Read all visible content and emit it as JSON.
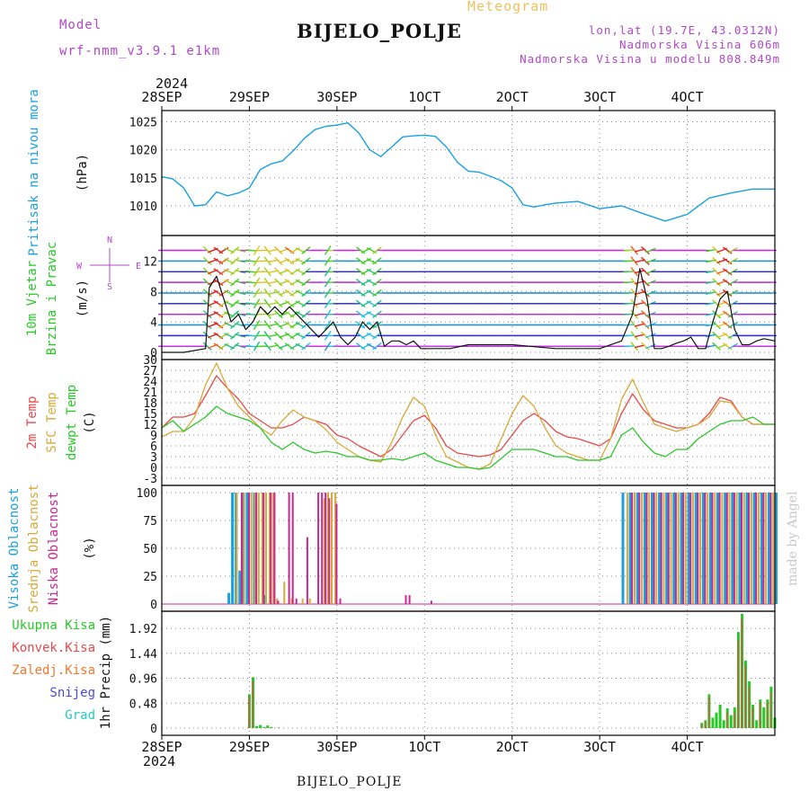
{
  "header": {
    "model_label": "Model",
    "model_name": "wrf-nmm_v3.9.1 e1km",
    "station_title": "BIJELO_POLJE",
    "meteogram_label": "Meteogram",
    "lonlat": "lon,lat (19.7E, 43.0312N)",
    "altitude": "Nadmorska Visina 606m",
    "model_altitude": "Nadmorska Visina u modelu 808.849m"
  },
  "footer": {
    "station": "BIJELO_POLJE",
    "credit": "made by Angel"
  },
  "time_axis": {
    "year": "2024",
    "labels": [
      "28SEP",
      "29SEP",
      "30SEP",
      "1OCT",
      "2OCT",
      "3OCT",
      "4OCT"
    ]
  },
  "colors": {
    "pressure": "#1aa0e0",
    "temp2m": "#e84848",
    "sfctemp": "#d8a838",
    "dewpt": "#28c828",
    "cloud_high": "#1aa0e0",
    "cloud_mid": "#d8a838",
    "cloud_low": "#c82890",
    "precip_total": "#28c828",
    "precip_conv": "#e84848",
    "precip_frozen": "#f07830",
    "snow": "#4848e8",
    "hail": "#28c8c8",
    "label_purple": "#b048c8"
  },
  "chart_data": [
    {
      "type": "line",
      "panel": "pressure",
      "ylabel_parts": [
        "Pritisak na nivou mora",
        "(hPa)"
      ],
      "yticks": [
        1010,
        1015,
        1020,
        1025
      ],
      "ylim": [
        1006,
        1027
      ],
      "x_unit": "hours since 28SEP 00Z",
      "series": [
        {
          "name": "Pritisak na nivou mora",
          "x": [
            0,
            3,
            6,
            9,
            12,
            15,
            18,
            21,
            24,
            27,
            30,
            33,
            36,
            39,
            42,
            45,
            48,
            51,
            54,
            57,
            60,
            63,
            66,
            69,
            72,
            75,
            78,
            81,
            84,
            87,
            90,
            93,
            96,
            99,
            102,
            105,
            108,
            114,
            120,
            126,
            132,
            138,
            144,
            150,
            156,
            162,
            168
          ],
          "y": [
            1015.2,
            1014.8,
            1013.2,
            1010,
            1010.2,
            1012.5,
            1011.8,
            1012.3,
            1013.2,
            1016.5,
            1017.5,
            1018,
            1019.8,
            1022,
            1023.6,
            1024.2,
            1024.4,
            1024.8,
            1023,
            1020,
            1018.8,
            1020.5,
            1022.3,
            1022.5,
            1022.6,
            1022.4,
            1020.5,
            1017.8,
            1016.2,
            1016,
            1015.3,
            1014.5,
            1013.2,
            1010.2,
            1009.8,
            1010.2,
            1010.5,
            1010.8,
            1009.5,
            1010,
            1008.6,
            1007.3,
            1008.5,
            1011.4,
            1012.3,
            1013,
            1013
          ]
        }
      ]
    },
    {
      "type": "line",
      "panel": "wind",
      "ylabel_parts": [
        "10m Vjetar",
        "Brzina i Pravac",
        "(m/s)"
      ],
      "compass": [
        "N",
        "S",
        "W",
        "E"
      ],
      "yticks": [
        0,
        4,
        8,
        12
      ],
      "ylim": [
        0,
        15
      ],
      "series": [
        {
          "name": "10m Vjetar",
          "x": [
            0,
            6,
            12,
            13,
            15,
            17,
            19,
            21,
            23,
            25,
            27,
            29,
            31,
            33,
            35,
            37,
            39,
            41,
            43,
            45,
            47,
            49,
            51,
            53,
            55,
            57,
            59,
            61,
            63,
            65,
            67,
            69,
            71,
            73,
            75,
            77,
            79,
            84,
            96,
            108,
            120,
            126,
            129,
            131,
            133,
            135,
            137,
            139,
            141,
            143,
            145,
            147,
            149,
            151,
            153,
            155,
            157,
            159,
            161,
            163,
            165,
            168
          ],
          "y": [
            0,
            0,
            0.5,
            8.5,
            10,
            7,
            4,
            5,
            3,
            4,
            6,
            5,
            6,
            5,
            6,
            5,
            4,
            3,
            2,
            3,
            4,
            2,
            1,
            2,
            4,
            3,
            4,
            0.8,
            1.5,
            1.5,
            1,
            1.5,
            0.5,
            0.5,
            0.5,
            0.5,
            0.5,
            1,
            1,
            0.5,
            0.5,
            1.5,
            5,
            11,
            7,
            0.5,
            0.5,
            0.8,
            1.2,
            1.5,
            2,
            0.5,
            0.5,
            4,
            7,
            8,
            3,
            1,
            1,
            1.5,
            1.8,
            1.5
          ]
        }
      ]
    },
    {
      "type": "line",
      "panel": "temperature",
      "ylabel_parts": [
        "2m Temp",
        "SFC Temp",
        "dewpt Temp",
        "(C)"
      ],
      "yticks": [
        -3,
        0,
        3,
        6,
        9,
        12,
        15,
        18,
        21,
        24,
        27,
        30
      ],
      "ylim": [
        -3,
        30
      ],
      "series": [
        {
          "name": "2m Temp",
          "x": [
            0,
            3,
            6,
            9,
            12,
            15,
            18,
            21,
            24,
            27,
            30,
            33,
            36,
            39,
            42,
            45,
            48,
            51,
            54,
            57,
            60,
            63,
            66,
            69,
            72,
            75,
            78,
            81,
            84,
            87,
            90,
            93,
            96,
            99,
            102,
            105,
            108,
            111,
            114,
            117,
            120,
            123,
            126,
            129,
            132,
            135,
            138,
            141,
            144,
            147,
            150,
            153,
            156,
            159,
            162,
            165,
            168
          ],
          "y": [
            11,
            14,
            14,
            15,
            20,
            25.5,
            22,
            19,
            15,
            13,
            11,
            11,
            12,
            14,
            13,
            12,
            9,
            8,
            6,
            4.5,
            3,
            5,
            9,
            13,
            14.5,
            11,
            6,
            4,
            3.5,
            3,
            3.5,
            5,
            9,
            13,
            15,
            13,
            10,
            8.5,
            8,
            7,
            6,
            8,
            15,
            20.5,
            16,
            13,
            12,
            11,
            11,
            12,
            15,
            19.5,
            18.5,
            14,
            12,
            12,
            12
          ]
        },
        {
          "name": "SFC Temp",
          "x": [
            0,
            3,
            6,
            9,
            12,
            15,
            18,
            21,
            24,
            27,
            30,
            33,
            36,
            39,
            42,
            45,
            48,
            51,
            54,
            57,
            60,
            63,
            66,
            69,
            72,
            75,
            78,
            81,
            84,
            87,
            90,
            93,
            96,
            99,
            102,
            105,
            108,
            111,
            114,
            117,
            120,
            123,
            126,
            129,
            132,
            135,
            138,
            141,
            144,
            147,
            150,
            153,
            156,
            159,
            162,
            165,
            168
          ],
          "y": [
            8.5,
            10,
            10,
            14,
            23,
            29,
            22,
            17,
            14,
            11,
            9,
            13,
            16,
            14,
            13,
            10.5,
            7,
            5,
            3,
            2,
            1.5,
            7,
            14,
            19.5,
            17,
            9,
            3,
            1.5,
            0,
            -0.5,
            1,
            8,
            15,
            20,
            17,
            11,
            6,
            4,
            3,
            2,
            2,
            8,
            19,
            24.5,
            18,
            12,
            11,
            10,
            11,
            12,
            14,
            18.5,
            18,
            14,
            12,
            12,
            12
          ]
        },
        {
          "name": "dewpt Temp",
          "x": [
            0,
            3,
            6,
            9,
            12,
            15,
            18,
            21,
            24,
            27,
            30,
            33,
            36,
            39,
            42,
            45,
            48,
            51,
            54,
            57,
            60,
            63,
            66,
            69,
            72,
            75,
            78,
            81,
            84,
            87,
            90,
            93,
            96,
            99,
            102,
            105,
            108,
            111,
            114,
            117,
            120,
            123,
            126,
            129,
            132,
            135,
            138,
            141,
            144,
            147,
            150,
            153,
            156,
            159,
            162,
            165,
            168
          ],
          "y": [
            11,
            13,
            10,
            12,
            14,
            17,
            15,
            14,
            13,
            11,
            7,
            5,
            7,
            5,
            4,
            4.5,
            4,
            3,
            3,
            2,
            2,
            2.5,
            2,
            3,
            4,
            2,
            1,
            0,
            0,
            -0.5,
            0,
            2.5,
            5,
            5,
            5,
            4,
            3,
            3,
            2,
            2,
            2,
            3,
            9,
            11,
            7,
            4,
            3,
            5,
            5,
            8,
            10,
            12,
            13,
            13,
            14,
            12,
            12
          ]
        }
      ]
    },
    {
      "type": "bar",
      "panel": "clouds",
      "ylabel_parts": [
        "Visoka Oblacnost",
        "Srednja Oblacnost",
        "Niska Oblacnost",
        "(%)"
      ],
      "yticks": [
        0,
        25,
        50,
        75,
        100
      ],
      "ylim": [
        0,
        100
      ],
      "series": [
        {
          "name": "Visoka Oblacnost",
          "x": [
            18,
            19,
            20,
            21,
            22,
            23,
            25,
            28,
            126,
            128,
            130,
            132,
            134,
            136,
            138,
            140,
            142,
            144,
            146,
            148,
            150,
            152,
            154,
            156,
            158,
            160,
            162,
            164,
            166,
            168
          ],
          "y": [
            10,
            100,
            100,
            30,
            100,
            100,
            100,
            8,
            100,
            100,
            100,
            100,
            100,
            100,
            100,
            100,
            100,
            100,
            100,
            100,
            100,
            100,
            100,
            100,
            100,
            100,
            100,
            100,
            100,
            100
          ]
        },
        {
          "name": "Srednja Oblacnost",
          "x": [
            20,
            22,
            24,
            25,
            26,
            27,
            28,
            29,
            30,
            31,
            33,
            35,
            38,
            40,
            44,
            45,
            46,
            47,
            127,
            129,
            131,
            133,
            135,
            137,
            139,
            141,
            143,
            145,
            147,
            149,
            151,
            153,
            155,
            157,
            159,
            161,
            163,
            165,
            167
          ],
          "y": [
            100,
            100,
            100,
            100,
            100,
            100,
            100,
            100,
            100,
            5,
            20,
            5,
            5,
            5,
            95,
            100,
            100,
            100,
            100,
            100,
            100,
            100,
            100,
            100,
            100,
            100,
            100,
            100,
            100,
            100,
            100,
            100,
            100,
            100,
            100,
            100,
            100,
            100,
            100
          ]
        },
        {
          "name": "Niska Oblacnost",
          "x": [
            21,
            23,
            25,
            27,
            29,
            30,
            31,
            34,
            35,
            36,
            39,
            42,
            43,
            44,
            45,
            47,
            48,
            66,
            67,
            73,
            128,
            130,
            132,
            134,
            136,
            138,
            140,
            142,
            144,
            146,
            148,
            150,
            152,
            154,
            156,
            158,
            160,
            162,
            164,
            166
          ],
          "y": [
            100,
            100,
            100,
            100,
            100,
            100,
            3,
            100,
            100,
            5,
            60,
            100,
            100,
            100,
            95,
            90,
            5,
            8,
            8,
            3,
            100,
            100,
            100,
            100,
            100,
            100,
            100,
            100,
            100,
            100,
            100,
            100,
            100,
            100,
            100,
            100,
            100,
            100,
            100,
            100
          ]
        }
      ]
    },
    {
      "type": "bar",
      "panel": "precip",
      "ylabel_parts": [
        "1hr Precip (mm)"
      ],
      "legend": [
        "Ukupna Kisa",
        "Konvek.Kisa",
        "Zaledj.Kisa",
        "Snijeg",
        "Grad"
      ],
      "yticks": [
        0,
        0.48,
        0.96,
        1.44,
        1.92
      ],
      "ylim": [
        0,
        2.25
      ],
      "series": [
        {
          "name": "Ukupna Kisa",
          "x": [
            24,
            25,
            26,
            27,
            28,
            29,
            30,
            32,
            148,
            149,
            150,
            151,
            152,
            153,
            154,
            155,
            156,
            157,
            158,
            159,
            160,
            161,
            162,
            163,
            164,
            165,
            166,
            167,
            168
          ],
          "y": [
            0.65,
            0.98,
            0.04,
            0.06,
            0.02,
            0.05,
            0.02,
            0.01,
            0.1,
            0.15,
            0.65,
            0.2,
            0.3,
            0.45,
            0.15,
            0.38,
            0.25,
            0.4,
            1.85,
            2.2,
            1.3,
            0.9,
            0.45,
            0.15,
            0.55,
            0.4,
            0.55,
            0.8,
            0.2
          ]
        },
        {
          "name": "Konvek.Kisa",
          "x": [
            24,
            25,
            148,
            149,
            150,
            155,
            157,
            158,
            159,
            160,
            161,
            162,
            164,
            166,
            167
          ],
          "y": [
            0.6,
            0.9,
            0.08,
            0.12,
            0.6,
            0.3,
            0.3,
            1.7,
            2.1,
            1.2,
            0.8,
            0.4,
            0.5,
            0.5,
            0.7
          ]
        }
      ]
    }
  ]
}
